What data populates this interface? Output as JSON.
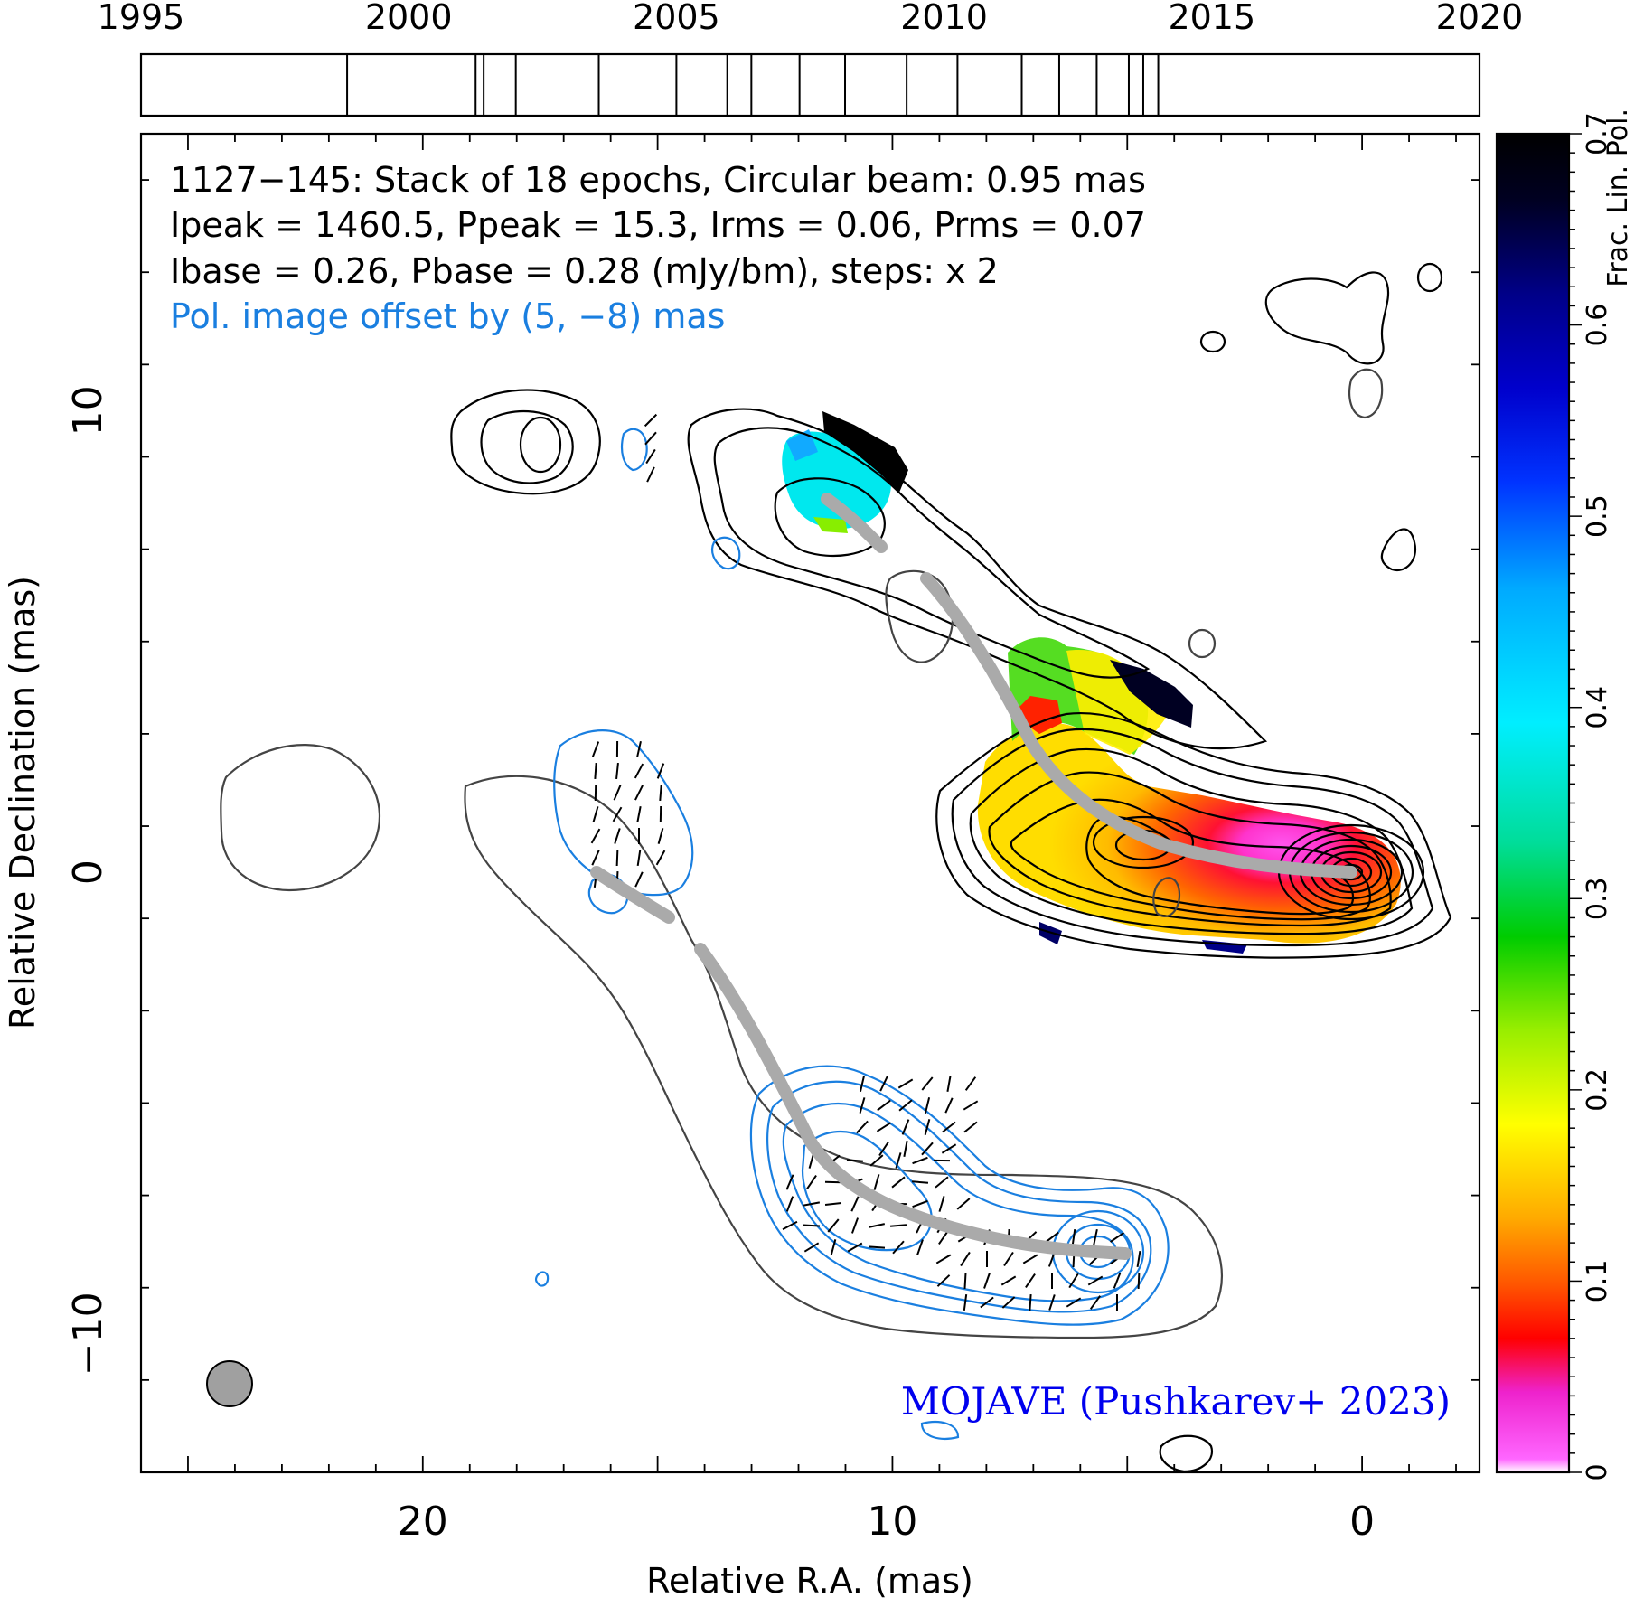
{
  "chart_data": {
    "type": "contour_map",
    "info_lines": [
      "1127−145: Stack of 18 epochs, Circular beam: 0.95 mas",
      "Ipeak = 1460.5, Ppeak = 15.3, Irms = 0.06, Prms = 0.07",
      "Ibase = 0.26, Pbase = 0.28 (mJy/bm), steps: x 2"
    ],
    "offset_note": "Pol. image offset by (5, −8) mas",
    "credit": "MOJAVE (Pushkarev+ 2023)",
    "xlabel": "Relative R.A. (mas)",
    "ylabel": "Relative Declination (mas)",
    "xlim": [
      26,
      -2.5
    ],
    "ylim": [
      -13,
      16
    ],
    "x_ticks": [
      20,
      10,
      0
    ],
    "x_tick_labels": [
      "20",
      "10",
      "0"
    ],
    "y_ticks": [
      10,
      0,
      -10
    ],
    "y_tick_labels": [
      "10",
      "0",
      "−10"
    ],
    "timeline": {
      "range": [
        1995,
        2020
      ],
      "tick_labels": [
        "1995",
        "2000",
        "2005",
        "2010",
        "2015",
        "2020"
      ],
      "epochs": [
        1998.85,
        2001.25,
        2001.4,
        2002.0,
        2003.55,
        2005.0,
        2005.95,
        2006.4,
        2007.3,
        2008.15,
        2009.3,
        2010.25,
        2011.45,
        2012.15,
        2012.85,
        2013.45,
        2013.72,
        2014.0
      ]
    },
    "colorbar": {
      "label": "Frac. Lin. Pol.",
      "range": [
        0,
        0.7
      ],
      "tick_labels": [
        "0",
        "0.1",
        "0.2",
        "0.3",
        "0.4",
        "0.5",
        "0.6",
        "0.7"
      ]
    },
    "beam": {
      "diameter_mas": 0.95
    },
    "colors": {
      "stokes_i": "#000000",
      "low_contour": "#444444",
      "polarized": "#1a7fe0",
      "ridge": "#aaaaaa",
      "credit": "#0000ee",
      "beam": "#a0a0a0"
    }
  }
}
